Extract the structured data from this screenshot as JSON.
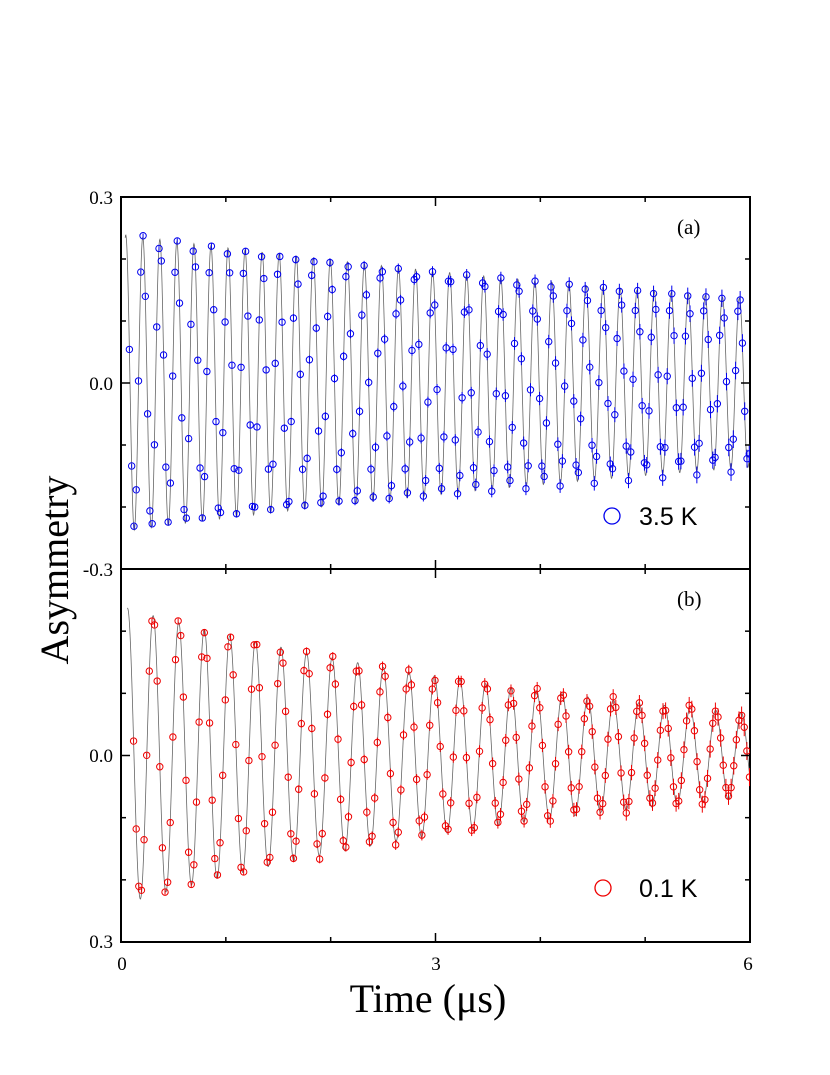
{
  "chart_data": [
    {
      "type": "scatter",
      "panel_label": "(a)",
      "legend": "3.5 K",
      "color": "#0000ee",
      "ylabel": "Asymmetry",
      "xlim": [
        0,
        6
      ],
      "ylim": [
        -0.3,
        0.3
      ],
      "y_tick_labels": [
        "0.3",
        "0.0",
        "-0.3"
      ],
      "model": {
        "amplitude": 0.24,
        "frequency_mhz": 6.15,
        "damping_per_us": 0.095,
        "phase_rad": -1.75,
        "points_per_us": 46,
        "t_start": 0.08
      }
    },
    {
      "type": "scatter",
      "panel_label": "(b)",
      "legend": "0.1 K",
      "color": "#ee0000",
      "xlabel": "Time (μs)",
      "xlim": [
        0,
        6
      ],
      "ylim": [
        -0.3,
        0.3
      ],
      "x_tick_labels": [
        "0",
        "3",
        "6"
      ],
      "y_tick_labels": [
        "0.0",
        "0.3"
      ],
      "model": {
        "amplitude": 0.24,
        "frequency_mhz": 4.1,
        "damping_per_us": 0.21,
        "phase_rad": -1.62,
        "points_per_us": 40,
        "t_start": 0.12
      }
    }
  ],
  "figure": {
    "ylabel": "Asymmetry",
    "xlabel": "Time (μs)"
  }
}
